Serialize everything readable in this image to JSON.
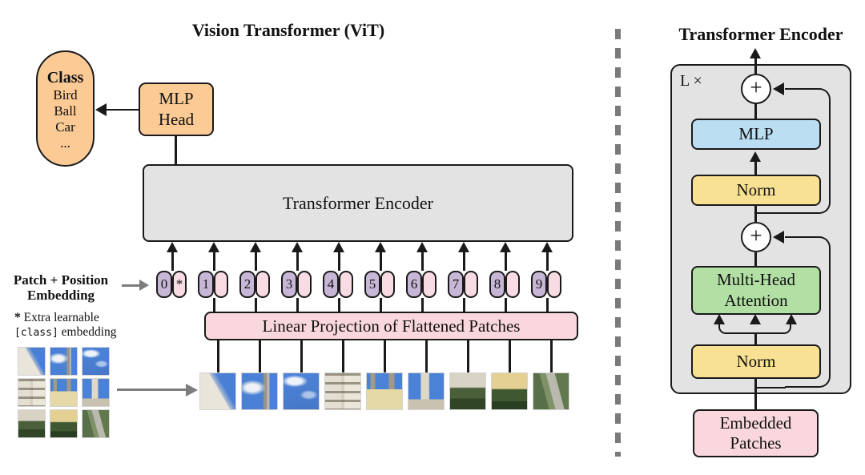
{
  "left": {
    "title": "Vision Transformer (ViT)",
    "class_pill": {
      "heading": "Class",
      "items": [
        "Bird",
        "Ball",
        "Car",
        "..."
      ]
    },
    "mlp_head": {
      "line1": "MLP",
      "line2": "Head"
    },
    "encoder_label": "Transformer Encoder",
    "patch_position_label": {
      "line1": "Patch + Position",
      "line2": "Embedding"
    },
    "footnote": {
      "star": "*",
      "text1": " Extra learnable",
      "code": "[class]",
      "text2": " embedding"
    },
    "linear_projection_label": "Linear Projection of Flattened Patches",
    "tokens": [
      {
        "num": "0",
        "companion": "*"
      },
      {
        "num": "1",
        "companion": ""
      },
      {
        "num": "2",
        "companion": ""
      },
      {
        "num": "3",
        "companion": ""
      },
      {
        "num": "4",
        "companion": ""
      },
      {
        "num": "5",
        "companion": ""
      },
      {
        "num": "6",
        "companion": ""
      },
      {
        "num": "7",
        "companion": ""
      },
      {
        "num": "8",
        "companion": ""
      },
      {
        "num": "9",
        "companion": ""
      }
    ],
    "patches": [
      {
        "name": "dome-and-sky",
        "bg": "linear-gradient(60deg,#e9e5da 0 52%,#a9b8d2 55%,#4a80d4 66%,#4a80d4 100%)"
      },
      {
        "name": "cloud-and-tower",
        "bg": "radial-gradient(ellipse 55% 30% at 30% 40%,#eef2f6 0 35%,rgba(238,242,246,0) 70%),linear-gradient(90deg,#4a81d6 0 60%,#9a948a 63% 72%,#c3beb2 72% 76%,#4a81d6 80%)"
      },
      {
        "name": "sky-clouds",
        "bg": "radial-gradient(ellipse 50% 22% at 32% 22%,rgba(255,255,255,0.9) 0 40%,rgba(255,255,255,0) 75%),radial-gradient(ellipse 35% 18% at 72% 60%,rgba(255,255,255,0.55) 0 40%,rgba(255,255,255,0) 75%),linear-gradient(175deg,#4c84d8 0,#4678c8 100%)"
      },
      {
        "name": "white-facade",
        "bg": "repeating-linear-gradient(180deg,rgba(90,80,60,0.55) 0 3px,rgba(0,0,0,0) 3px 11px),linear-gradient(90deg,#e4dfd2 0 45%,#d6d0c0 45% 55%,#eae6da 55%)"
      },
      {
        "name": "yellow-towers",
        "bg": "linear-gradient(0deg,#e6d9a8 0 55%,rgba(0,0,0,0) 55%),linear-gradient(90deg,rgba(0,0,0,0) 0 10%,#a29a88 10% 24%,rgba(0,0,0,0) 24% 62%,#a29a88 62% 78%,rgba(0,0,0,0) 78%),linear-gradient(180deg,#4a82d6 0 45%,#cfc9b8 45%)"
      },
      {
        "name": "tower-sky",
        "bg": "linear-gradient(0deg,#c9c2b0 0 28%,rgba(0,0,0,0) 28%),linear-gradient(90deg,#4a82d6 0 34%,#ded8ca 36% 58%,#4a82d6 60%)"
      },
      {
        "name": "hedge-building",
        "bg": "linear-gradient(180deg,#d9d3c6 0 38%,#49603a 42% 70%,#2f4526 70%)"
      },
      {
        "name": "yellow-hedge",
        "bg": "linear-gradient(180deg,#e3d092 0 42%,#3f5832 46% 78%,#293d20 78%)"
      },
      {
        "name": "trees-path",
        "bg": "linear-gradient(75deg,#57704a 0 35%,#7e9168 35% 48%,#b9b9ae 50% 68%,#62794e 70%)"
      }
    ]
  },
  "right": {
    "title": "Transformer Encoder",
    "loop_label": "L ×",
    "plus": "+",
    "mlp_label": "MLP",
    "norm_top_label": "Norm",
    "mha": {
      "line1": "Multi-Head",
      "line2": "Attention"
    },
    "norm_bottom_label": "Norm",
    "embedded": {
      "line1": "Embedded",
      "line2": "Patches"
    }
  },
  "colors": {
    "orange": "#fbca95",
    "box-gray": "#e3e3e3",
    "pink": "#f9d7dc",
    "pink-light": "#f9dce3",
    "purple": "#c7b6d5",
    "blue": "#bbdef2",
    "yellow": "#f9e193",
    "green": "#b2e0a4",
    "gray-arrow": "#7d7d7d"
  }
}
